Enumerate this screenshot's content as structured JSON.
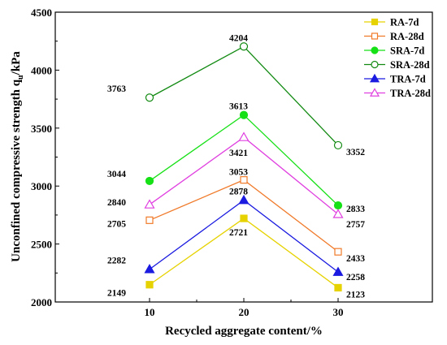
{
  "chart_data": {
    "type": "line",
    "xlabel": "Recycled aggregate content/%",
    "ylabel_main": "Unconfined compressive strength q",
    "ylabel_sub": "u",
    "ylabel_unit": "/kPa",
    "x": [
      10,
      20,
      30
    ],
    "xlim": [
      0,
      40
    ],
    "ylim": [
      2000,
      4500
    ],
    "xticks": [
      "10",
      "20",
      "30"
    ],
    "yticks": [
      "2000",
      "2500",
      "3000",
      "3500",
      "4000",
      "4500"
    ],
    "grid": false,
    "legend_position": "top-right",
    "series": [
      {
        "name": "RA-7d",
        "values": [
          2149,
          2721,
          2123
        ],
        "color": "#e6d200",
        "marker": "filled-square",
        "labels": [
          "2149",
          "2721",
          "2123"
        ]
      },
      {
        "name": "RA-28d",
        "values": [
          2705,
          3053,
          2433
        ],
        "color": "#f07a2a",
        "marker": "open-square",
        "labels": [
          "2705",
          "3053",
          "2433"
        ]
      },
      {
        "name": "SRA-7d",
        "values": [
          3044,
          3613,
          2833
        ],
        "color": "#16e016",
        "marker": "filled-circle",
        "labels": [
          "3044",
          "3613",
          "2833"
        ]
      },
      {
        "name": "SRA-28d",
        "values": [
          3763,
          4204,
          3352
        ],
        "color": "#128a12",
        "marker": "open-circle",
        "labels": [
          "3763",
          "4204",
          "3352"
        ]
      },
      {
        "name": "TRA-7d",
        "values": [
          2282,
          2878,
          2258
        ],
        "color": "#1a1ae0",
        "marker": "filled-triangle",
        "labels": [
          "2282",
          "2878",
          "2258"
        ]
      },
      {
        "name": "TRA-28d",
        "values": [
          2840,
          3421,
          2757
        ],
        "color": "#e040e0",
        "marker": "open-triangle",
        "labels": [
          "2840",
          "3421",
          "2757"
        ]
      }
    ]
  }
}
